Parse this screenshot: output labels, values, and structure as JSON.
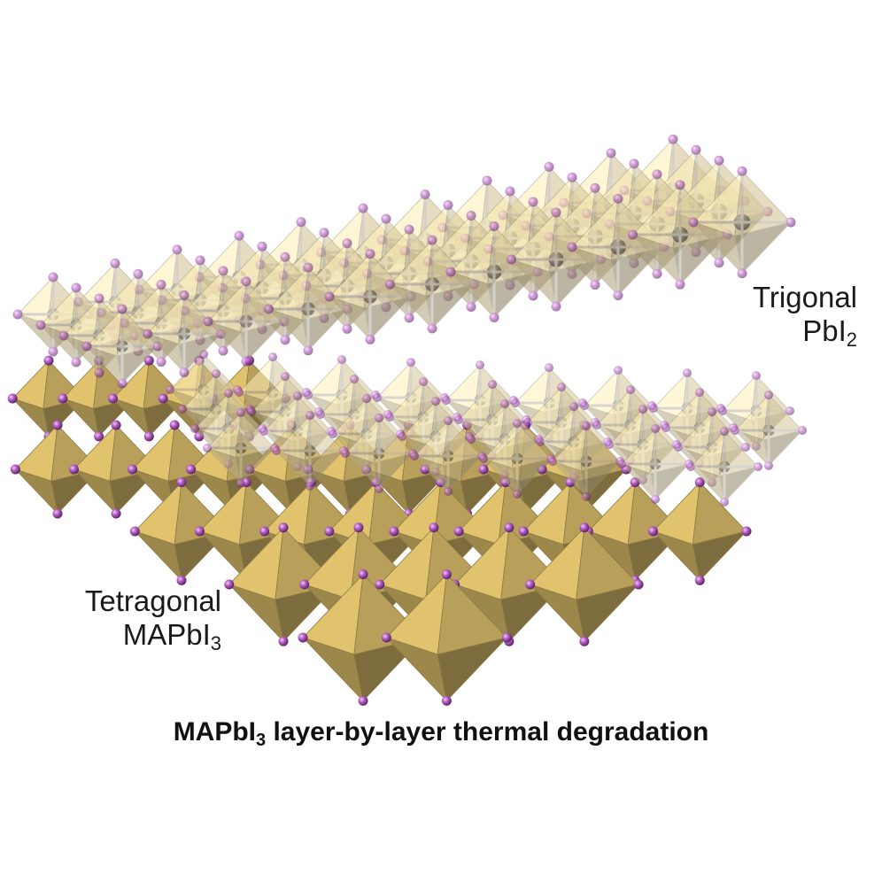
{
  "labels": {
    "top_right_line1": "Trigonal",
    "top_right_line2_main": "PbI",
    "top_right_line2_sub": "2",
    "bottom_left_line1": "Tetragonal",
    "bottom_left_line2_main": "MAPbI",
    "bottom_left_line2_sub": "3"
  },
  "caption": {
    "main": "MAPbI",
    "sub": "3",
    "rest": " layer-by-layer thermal degradation"
  },
  "colors": {
    "octahedron_solid": "#C9AE62",
    "octahedron_translucent": "#E8D7A6",
    "iodine_atom": "#B35FC2",
    "lead_atom": "#6E6659",
    "bond": "#B9B3A8"
  }
}
